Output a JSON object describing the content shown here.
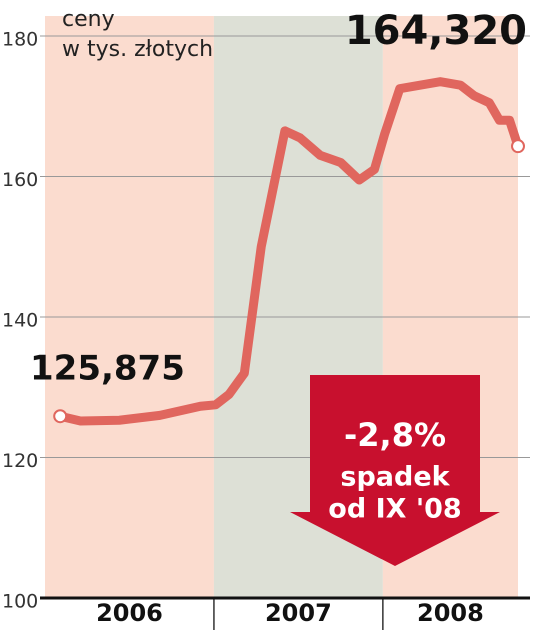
{
  "chart_data": {
    "type": "line",
    "ylabel": [
      "ceny",
      "w tys. złotych"
    ],
    "x": [
      2006.09,
      2006.21,
      2006.44,
      2006.68,
      2006.92,
      2007.01,
      2007.09,
      2007.18,
      2007.28,
      2007.42,
      2007.51,
      2007.63,
      2007.75,
      2007.86,
      2007.95,
      2008.01,
      2008.1,
      2008.22,
      2008.34,
      2008.46,
      2008.54,
      2008.63,
      2008.69,
      2008.75,
      2008.8
    ],
    "series": [
      {
        "color": "#e0665e",
        "values": [
          125.875,
          125.2,
          125.3,
          126,
          127.3,
          127.5,
          129,
          132,
          150,
          166.5,
          165.5,
          163,
          162,
          159.5,
          161,
          166,
          172.5,
          173,
          173.5,
          173,
          171.5,
          170.5,
          168,
          168,
          164.32
        ],
        "value_labels": [
          "125,875",
          null,
          null,
          null,
          null,
          null,
          null,
          null,
          null,
          null,
          null,
          null,
          null,
          null,
          null,
          null,
          null,
          null,
          null,
          null,
          null,
          null,
          null,
          null,
          "164,320"
        ]
      }
    ],
    "bands": [
      {
        "label": "2006",
        "from": 2006,
        "to": 2007,
        "color": "#fbdccf"
      },
      {
        "label": "2007",
        "from": 2007,
        "to": 2008,
        "color": "#dde0d6"
      },
      {
        "label": "2008",
        "from": 2008,
        "to": 2008.8,
        "color": "#fbdccf"
      }
    ],
    "xlim": [
      2006,
      2008.8
    ],
    "ylim": [
      100,
      180
    ],
    "yticks": [
      100,
      120,
      140,
      160,
      180
    ],
    "grid": true,
    "annotation": {
      "change": "-2,8%",
      "line1": "spadek",
      "line2": "od IX '08",
      "color": "#c8102e"
    }
  }
}
